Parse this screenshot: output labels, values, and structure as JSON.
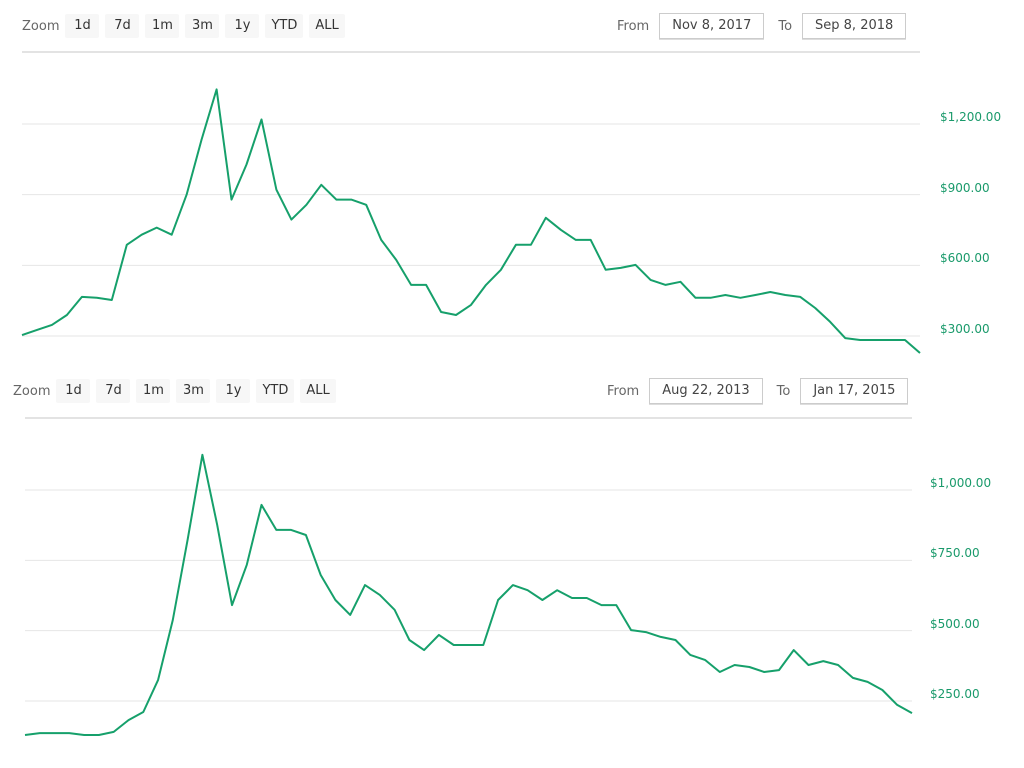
{
  "colors": {
    "line": "#16a06b",
    "grid": "#e6e6e6",
    "axis_label": "#1a9a6b"
  },
  "charts": [
    {
      "zoom_label": "Zoom",
      "zoom_buttons": [
        "1d",
        "7d",
        "1m",
        "3m",
        "1y",
        "YTD",
        "ALL"
      ],
      "from_label": "From",
      "from_value": "Nov 8, 2017",
      "to_label": "To",
      "to_value": "Sep 8, 2018"
    },
    {
      "zoom_label": "Zoom",
      "zoom_buttons": [
        "1d",
        "7d",
        "1m",
        "3m",
        "1y",
        "YTD",
        "ALL"
      ],
      "from_label": "From",
      "from_value": "Aug 22, 2013",
      "to_label": "To",
      "to_value": "Jan 17, 2015"
    }
  ],
  "chart_data": [
    {
      "type": "line",
      "title": "",
      "x_range": [
        "Nov 8, 2017",
        "Sep 8, 2018"
      ],
      "x_sampling": "evenly spaced over date range",
      "ylim": [
        230,
        1400
      ],
      "yticks": [
        300,
        600,
        900,
        1200
      ],
      "ytick_labels": [
        "$300.00",
        "$600.00",
        "$900.00",
        "$1,200.00"
      ],
      "grid": true,
      "values": [
        304,
        326,
        347,
        389,
        466,
        462,
        453,
        687,
        730,
        760,
        730,
        900,
        1134,
        1347,
        879,
        1028,
        1219,
        921,
        794,
        857,
        942,
        879,
        879,
        857,
        708,
        623,
        517,
        517,
        402,
        389,
        432,
        517,
        581,
        687,
        687,
        802,
        751,
        708,
        708,
        581,
        589,
        602,
        538,
        517,
        530,
        462,
        462,
        474,
        462,
        474,
        487,
        474,
        466,
        419,
        360,
        291,
        283,
        283,
        283,
        283,
        228
      ]
    },
    {
      "type": "line",
      "title": "",
      "x_range": [
        "Aug 22, 2013",
        "Jan 17, 2015"
      ],
      "x_sampling": "evenly spaced over date range",
      "ylim": [
        120,
        1150
      ],
      "yticks": [
        250,
        500,
        750,
        1000
      ],
      "ytick_labels": [
        "$250.00",
        "$500.00",
        "$750.00",
        "$1,000.00"
      ],
      "grid": true,
      "values": [
        129,
        136,
        136,
        136,
        129,
        129,
        140,
        182,
        211,
        325,
        538,
        823,
        1125,
        876,
        591,
        734,
        947,
        858,
        858,
        840,
        698,
        609,
        556,
        662,
        627,
        574,
        467,
        431,
        485,
        449,
        449,
        449,
        609,
        662,
        644,
        609,
        644,
        616,
        616,
        591,
        591,
        502,
        495,
        478,
        467,
        414,
        396,
        353,
        378,
        371,
        353,
        360,
        431,
        378,
        392,
        378,
        332,
        318,
        289,
        236,
        207
      ]
    }
  ]
}
